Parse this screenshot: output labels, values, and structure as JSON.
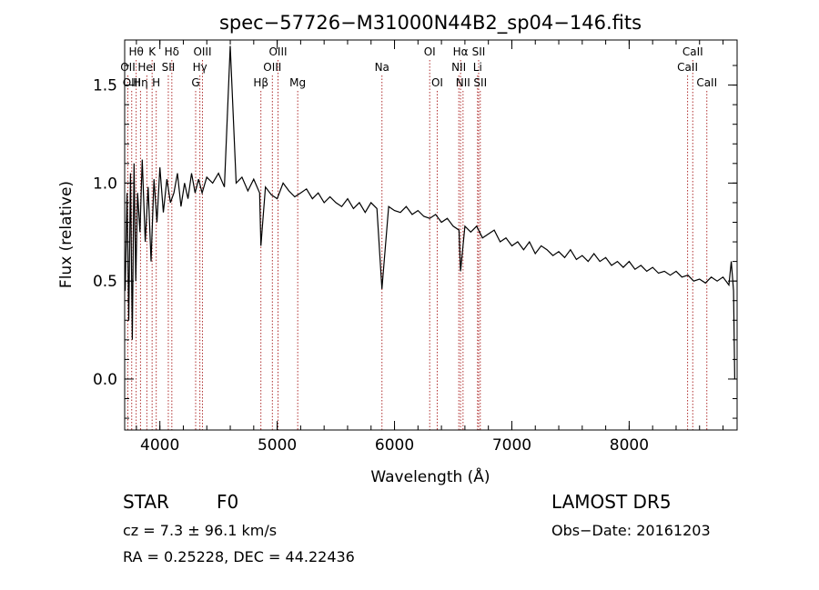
{
  "chart_data": {
    "type": "line",
    "title": "spec−57726−M31000N44B2_sp04−146.fits",
    "xlabel": "Wavelength (Å)",
    "ylabel": "Flux (relative)",
    "xlim": [
      3700,
      8920
    ],
    "ylim": [
      -0.26,
      1.73
    ],
    "xticks": [
      {
        "value": 4000,
        "label": "4000"
      },
      {
        "value": 5000,
        "label": "5000"
      },
      {
        "value": 6000,
        "label": "6000"
      },
      {
        "value": 7000,
        "label": "7000"
      },
      {
        "value": 8000,
        "label": "8000"
      }
    ],
    "yticks": [
      {
        "value": 0.0,
        "label": "0.0"
      },
      {
        "value": 0.5,
        "label": "0.5"
      },
      {
        "value": 1.0,
        "label": "1.0"
      },
      {
        "value": 1.5,
        "label": "1.5"
      }
    ],
    "series": [
      {
        "x": [
          3705,
          3720,
          3735,
          3750,
          3765,
          3780,
          3795,
          3810,
          3830,
          3850,
          3875,
          3900,
          3925,
          3950,
          3975,
          4000,
          4030,
          4060,
          4090,
          4120,
          4150,
          4180,
          4210,
          4240,
          4270,
          4300,
          4330,
          4360,
          4400,
          4450,
          4500,
          4550,
          4600,
          4650,
          4700,
          4750,
          4800,
          4850,
          4861,
          4900,
          4950,
          5000,
          5050,
          5100,
          5150,
          5200,
          5250,
          5300,
          5350,
          5400,
          5450,
          5500,
          5550,
          5600,
          5650,
          5700,
          5750,
          5800,
          5850,
          5893,
          5950,
          6000,
          6050,
          6100,
          6150,
          6200,
          6250,
          6300,
          6350,
          6400,
          6450,
          6500,
          6550,
          6563,
          6600,
          6650,
          6700,
          6750,
          6800,
          6850,
          6900,
          6950,
          7000,
          7050,
          7100,
          7150,
          7200,
          7250,
          7300,
          7350,
          7400,
          7450,
          7500,
          7550,
          7600,
          7650,
          7700,
          7750,
          7800,
          7850,
          7900,
          7950,
          8000,
          8050,
          8100,
          8150,
          8200,
          8250,
          8300,
          8350,
          8400,
          8450,
          8500,
          8550,
          8600,
          8650,
          8700,
          8750,
          8800,
          8850,
          8870,
          8890,
          8900
        ],
        "values": [
          0.45,
          0.95,
          0.3,
          1.05,
          0.2,
          1.1,
          0.5,
          0.95,
          0.75,
          1.12,
          0.7,
          0.98,
          0.6,
          1.02,
          0.8,
          1.08,
          0.85,
          1.02,
          0.9,
          0.95,
          1.05,
          0.88,
          1.0,
          0.92,
          1.05,
          0.95,
          1.02,
          0.95,
          1.03,
          1.0,
          1.05,
          0.98,
          1.7,
          1.0,
          1.03,
          0.96,
          1.02,
          0.95,
          0.68,
          0.98,
          0.94,
          0.92,
          1.0,
          0.96,
          0.93,
          0.95,
          0.97,
          0.92,
          0.95,
          0.9,
          0.93,
          0.9,
          0.88,
          0.92,
          0.87,
          0.9,
          0.85,
          0.9,
          0.87,
          0.46,
          0.88,
          0.86,
          0.85,
          0.88,
          0.84,
          0.86,
          0.83,
          0.82,
          0.84,
          0.8,
          0.82,
          0.78,
          0.76,
          0.55,
          0.78,
          0.75,
          0.78,
          0.72,
          0.74,
          0.76,
          0.7,
          0.72,
          0.68,
          0.7,
          0.66,
          0.7,
          0.64,
          0.68,
          0.66,
          0.63,
          0.65,
          0.62,
          0.66,
          0.61,
          0.63,
          0.6,
          0.64,
          0.6,
          0.62,
          0.58,
          0.6,
          0.57,
          0.6,
          0.56,
          0.58,
          0.55,
          0.57,
          0.54,
          0.55,
          0.53,
          0.55,
          0.52,
          0.53,
          0.5,
          0.51,
          0.49,
          0.52,
          0.5,
          0.52,
          0.48,
          0.6,
          0.45,
          0.0
        ]
      }
    ],
    "lines": [
      {
        "label": "Hθ",
        "x": 3798,
        "row": 0
      },
      {
        "label": "OII",
        "x": 3727,
        "row": 1
      },
      {
        "label": "OIII",
        "x": 3760,
        "row": 2
      },
      {
        "label": "Hη",
        "x": 3835,
        "row": 2
      },
      {
        "label": "HeI",
        "x": 3889,
        "row": 1
      },
      {
        "label": "K",
        "x": 3934,
        "row": 0
      },
      {
        "label": "H",
        "x": 3969,
        "row": 2
      },
      {
        "label": "Hδ",
        "x": 4102,
        "row": 0
      },
      {
        "label": "SII",
        "x": 4072,
        "row": 1
      },
      {
        "label": "OIII",
        "x": 4363,
        "row": 0
      },
      {
        "label": "Hγ",
        "x": 4341,
        "row": 1
      },
      {
        "label": "G",
        "x": 4305,
        "row": 2
      },
      {
        "label": "Hβ",
        "x": 4861,
        "row": 2
      },
      {
        "label": "OIII",
        "x": 5007,
        "row": 0
      },
      {
        "label": "OIII",
        "x": 4959,
        "row": 1
      },
      {
        "label": "Mg",
        "x": 5175,
        "row": 2
      },
      {
        "label": "Na",
        "x": 5893,
        "row": 1
      },
      {
        "label": "OI",
        "x": 6300,
        "row": 0
      },
      {
        "label": "OI",
        "x": 6364,
        "row": 2
      },
      {
        "label": "Hα",
        "x": 6563,
        "row": 0
      },
      {
        "label": "NII",
        "x": 6548,
        "row": 1
      },
      {
        "label": "NII",
        "x": 6584,
        "row": 2
      },
      {
        "label": "SII",
        "x": 6717,
        "row": 0
      },
      {
        "label": "Li",
        "x": 6708,
        "row": 1
      },
      {
        "label": "SII",
        "x": 6731,
        "row": 2
      },
      {
        "label": "CaII",
        "x": 8542,
        "row": 0
      },
      {
        "label": "CaII",
        "x": 8498,
        "row": 1
      },
      {
        "label": "CaII",
        "x": 8662,
        "row": 2
      }
    ],
    "grid": false,
    "legend": "none"
  },
  "info": {
    "class": "STAR",
    "subclass": "F0",
    "survey": "LAMOST DR5",
    "cz": "cz = 7.3 ± 96.1 km/s",
    "obs_date": "Obs−Date: 20161203",
    "radec": "RA =    0.25228, DEC =  44.22436"
  },
  "colors": {
    "spectrum": "#000000",
    "marker_lines": "#b03030",
    "axes": "#000000"
  }
}
